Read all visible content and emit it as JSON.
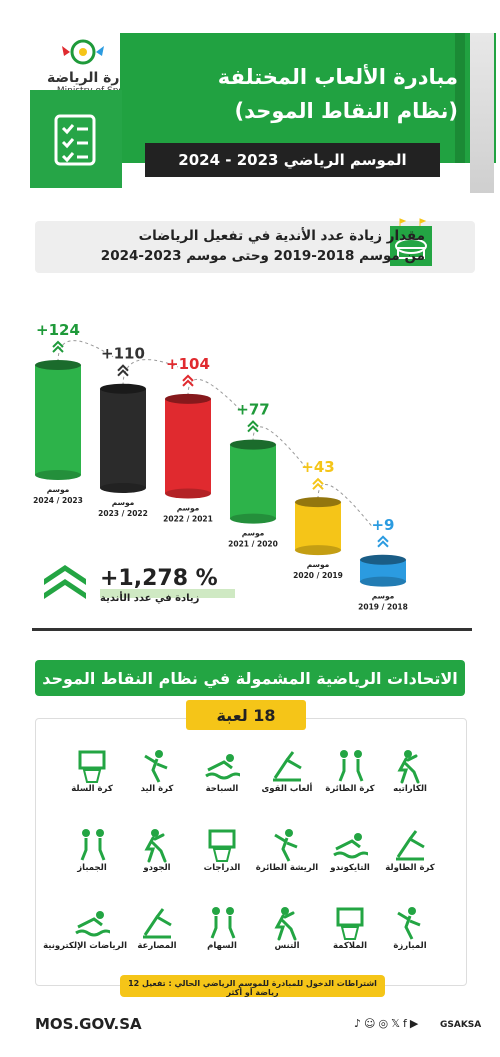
{
  "header": {
    "title_line1": "مبادرة الألعاب المختلفة",
    "title_line2": "(نظام النقاط الموحد)",
    "season": "الموسم الرياضي 2023 - 2024",
    "logo_ar": "وزارة الرياضة",
    "logo_en": "Ministry of Sport"
  },
  "growth": {
    "title_line1": "مقدار زيادة عدد الأندية في تفعيل الرياضات",
    "title_line2": "من موسم 2018-2019 وحتى موسم 2023-2024",
    "total_value": "+1,278 %",
    "total_label": "زيادة في عدد الأندية"
  },
  "chart_data": {
    "type": "bar",
    "categories": [
      "2024 / 2023",
      "2023 / 2022",
      "2022 / 2021",
      "2021 / 2020",
      "2020 / 2019",
      "2019 / 2018"
    ],
    "category_prefix": "موسم",
    "values": [
      124,
      110,
      104,
      77,
      43,
      9
    ],
    "value_labels": [
      "+124",
      "+110",
      "+104",
      "+77",
      "+43",
      "+9"
    ],
    "colors": [
      "#2db34a",
      "#2b2b2b",
      "#e02a2f",
      "#2db34a",
      "#f5c518",
      "#2b9be0"
    ],
    "value_colors": [
      "#1f9a3a",
      "#333333",
      "#e02a2f",
      "#1f9a3a",
      "#f5c518",
      "#2b9be0"
    ]
  },
  "sports": {
    "title": "الاتحادات الرياضية المشمولة في نظام النقاط الموحد",
    "count": "18 لعبة",
    "rows": [
      [
        "الكاراتيه",
        "كرة الطائرة",
        "ألعاب القوى",
        "السباحة",
        "كرة اليد",
        "كرة السلة"
      ],
      [
        "كرة الطاولة",
        "التايكوندو",
        "الريشة الطائرة",
        "الدراجات",
        "الجودو",
        "الجمباز"
      ],
      [
        "المبارزة",
        "الملاكمة",
        "التنس",
        "السهام",
        "المصارعة",
        "الرياضات الإلكترونية"
      ]
    ],
    "requirement": "اشتراطات الدخول للمبادرة للموسم الرياضي الحالي : تفعيل 12 رياضة أو أكثر"
  },
  "footer": {
    "url": "MOS.GOV.SA",
    "handle": "GSAKSA",
    "social_icons": [
      "tiktok-icon",
      "snapchat-icon",
      "instagram-icon",
      "x-icon",
      "facebook-icon",
      "youtube-icon"
    ]
  }
}
